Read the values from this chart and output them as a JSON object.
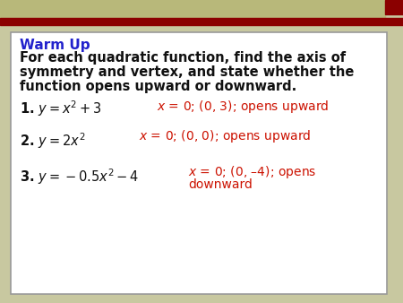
{
  "bg_color": "#c8c8a0",
  "slide_bg": "#ffffff",
  "header_tan_color": "#b8b87a",
  "header_red_color": "#8b0000",
  "box_bg": "#ffffff",
  "box_edge_color": "#999999",
  "title_color": "#2222cc",
  "title_text": "Warm Up",
  "subtitle_line1": "For each quadratic function, find the axis of",
  "subtitle_line2": "symmetry and vertex, and state whether the",
  "subtitle_line3": "function opens upward or downward.",
  "black_color": "#111111",
  "red_color": "#cc1100",
  "q1_left_parts": [
    "1. ",
    "y",
    " = ",
    "x",
    "2",
    " + 3"
  ],
  "q1_left_text": "1. $y = x^2 + 3$",
  "q1_right_text": "$x$ = 0; (0, 3); opens upward",
  "q2_left_text": "2. $y = 2x^2$",
  "q2_right_text": "$x$ = 0; (0, 0); opens upward",
  "q3_left_text": "3. $y = -0.5x^2 - 4$",
  "q3_right_line1": "$x$ = 0; (0, –4); opens",
  "q3_right_line2": "downward"
}
